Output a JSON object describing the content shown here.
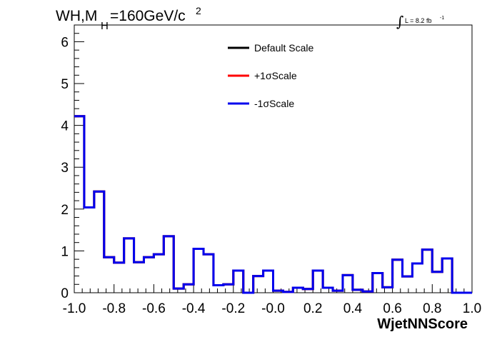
{
  "chart_data": {
    "type": "histogram",
    "title_main": "WH,M",
    "title_sub": "H",
    "title_rest": "=160GeV/c",
    "title_sup": "2",
    "luminosity": {
      "integral_symbol": "∫",
      "text": "L = 8.2 fb",
      "sup": "-1"
    },
    "xlabel": "WjetNNScore",
    "ylabel": "",
    "xlim": [
      -1.0,
      1.0
    ],
    "ylim": [
      0,
      6.4
    ],
    "x_ticks": [
      "-1.0",
      "-0.8",
      "-0.6",
      "-0.4",
      "-0.2",
      "-0.0",
      "0.2",
      "0.4",
      "0.6",
      "0.8",
      "1.0"
    ],
    "y_ticks": [
      "0",
      "1",
      "2",
      "3",
      "4",
      "5",
      "6"
    ],
    "bins": 40,
    "bin_edges_range": [
      -1.0,
      1.0
    ],
    "series": [
      {
        "name": "Default Scale",
        "color": "#000000",
        "values": [
          4.22,
          2.04,
          2.42,
          0.85,
          0.72,
          1.3,
          0.73,
          0.85,
          0.92,
          1.35,
          0.1,
          0.2,
          1.05,
          0.92,
          0.18,
          0.2,
          0.53,
          0.0,
          0.4,
          0.53,
          0.05,
          0.02,
          0.12,
          0.09,
          0.53,
          0.12,
          0.05,
          0.42,
          0.07,
          0.03,
          0.47,
          0.13,
          0.79,
          0.39,
          0.7,
          1.03,
          0.5,
          0.82,
          0.0,
          0.0
        ]
      },
      {
        "name": "+1σScale",
        "color": "#ff0000",
        "values": [
          4.22,
          2.04,
          2.42,
          0.85,
          0.72,
          1.3,
          0.73,
          0.85,
          0.92,
          1.35,
          0.1,
          0.2,
          1.05,
          0.92,
          0.18,
          0.2,
          0.53,
          0.0,
          0.4,
          0.53,
          0.05,
          0.02,
          0.12,
          0.09,
          0.53,
          0.12,
          0.05,
          0.42,
          0.07,
          0.03,
          0.47,
          0.13,
          0.79,
          0.39,
          0.7,
          1.03,
          0.5,
          0.82,
          0.0,
          0.0
        ]
      },
      {
        "name": "-1σScale",
        "color": "#0000ee",
        "values": [
          4.22,
          2.04,
          2.42,
          0.85,
          0.72,
          1.3,
          0.73,
          0.85,
          0.92,
          1.35,
          0.1,
          0.2,
          1.05,
          0.92,
          0.18,
          0.2,
          0.53,
          0.0,
          0.4,
          0.53,
          0.05,
          0.02,
          0.12,
          0.09,
          0.53,
          0.12,
          0.05,
          0.42,
          0.07,
          0.03,
          0.47,
          0.13,
          0.79,
          0.39,
          0.7,
          1.03,
          0.5,
          0.82,
          0.0,
          0.0
        ]
      }
    ],
    "legend_position": "top-center",
    "grid": false
  }
}
